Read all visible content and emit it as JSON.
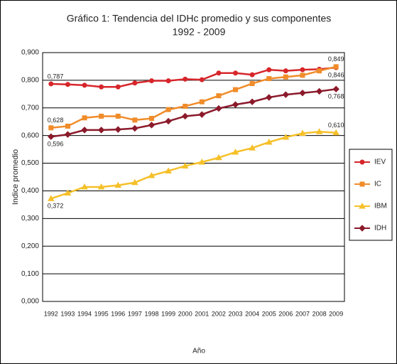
{
  "chart_data": {
    "type": "line",
    "title": [
      "Gráfico 1: Tendencia del IDHc promedio y sus componentes",
      "1992 - 2009"
    ],
    "ylabel": "Indice promedio",
    "xlabel": "Año",
    "categories": [
      "1992",
      "1993",
      "1994",
      "1995",
      "1996",
      "1997",
      "1998",
      "1999",
      "2000",
      "2001",
      "2002",
      "2003",
      "2004",
      "2005",
      "2006",
      "2007",
      "2008",
      "2009"
    ],
    "series": [
      {
        "name": "IEV",
        "color": "#d7262b",
        "marker": "circle",
        "values": [
          0.787,
          0.785,
          0.782,
          0.776,
          0.776,
          0.79,
          0.798,
          0.798,
          0.804,
          0.802,
          0.826,
          0.826,
          0.82,
          0.838,
          0.834,
          0.838,
          0.84,
          0.846
        ],
        "value_labels": [
          "0,787",
          null,
          null,
          null,
          null,
          null,
          null,
          null,
          null,
          null,
          null,
          null,
          null,
          null,
          null,
          null,
          null,
          "0,846"
        ]
      },
      {
        "name": "IC",
        "color": "#f08c2a",
        "marker": "square",
        "values": [
          0.628,
          0.634,
          0.664,
          0.67,
          0.67,
          0.656,
          0.662,
          0.694,
          0.706,
          0.722,
          0.744,
          0.766,
          0.788,
          0.806,
          0.812,
          0.818,
          0.834,
          0.849
        ],
        "value_labels": [
          "0,628",
          null,
          null,
          null,
          null,
          null,
          null,
          null,
          null,
          null,
          null,
          null,
          null,
          null,
          null,
          null,
          null,
          "0,849"
        ]
      },
      {
        "name": "IBM",
        "color": "#f5c02a",
        "marker": "triangle",
        "values": [
          0.372,
          0.392,
          0.414,
          0.414,
          0.42,
          0.43,
          0.455,
          0.472,
          0.49,
          0.504,
          0.52,
          0.54,
          0.555,
          0.576,
          0.594,
          0.608,
          0.614,
          0.61
        ],
        "value_labels": [
          "0,372",
          null,
          null,
          null,
          null,
          null,
          null,
          null,
          null,
          null,
          null,
          null,
          null,
          null,
          null,
          null,
          null,
          "0,610"
        ]
      },
      {
        "name": "IDH",
        "color": "#8b1a2b",
        "marker": "diamond",
        "values": [
          0.596,
          0.604,
          0.62,
          0.62,
          0.622,
          0.626,
          0.638,
          0.652,
          0.67,
          0.676,
          0.698,
          0.712,
          0.722,
          0.738,
          0.748,
          0.754,
          0.76,
          0.768
        ],
        "value_labels": [
          "0,596",
          null,
          null,
          null,
          null,
          null,
          null,
          null,
          null,
          null,
          null,
          null,
          null,
          null,
          null,
          null,
          null,
          "0,768"
        ]
      }
    ],
    "ylim": [
      0,
      0.9
    ],
    "yticks": [
      {
        "value": 0,
        "label": "0,000"
      },
      {
        "value": 0.1,
        "label": "0,100"
      },
      {
        "value": 0.2,
        "label": "0,200"
      },
      {
        "value": 0.3,
        "label": "0,300"
      },
      {
        "value": 0.4,
        "label": "0,400"
      },
      {
        "value": 0.5,
        "label": "0,500"
      },
      {
        "value": 0.6,
        "label": "0,600"
      },
      {
        "value": 0.7,
        "label": "0,700"
      },
      {
        "value": 0.8,
        "label": "0,800"
      },
      {
        "value": 0.9,
        "label": "0,900"
      }
    ],
    "grid": true,
    "legend": "right"
  }
}
